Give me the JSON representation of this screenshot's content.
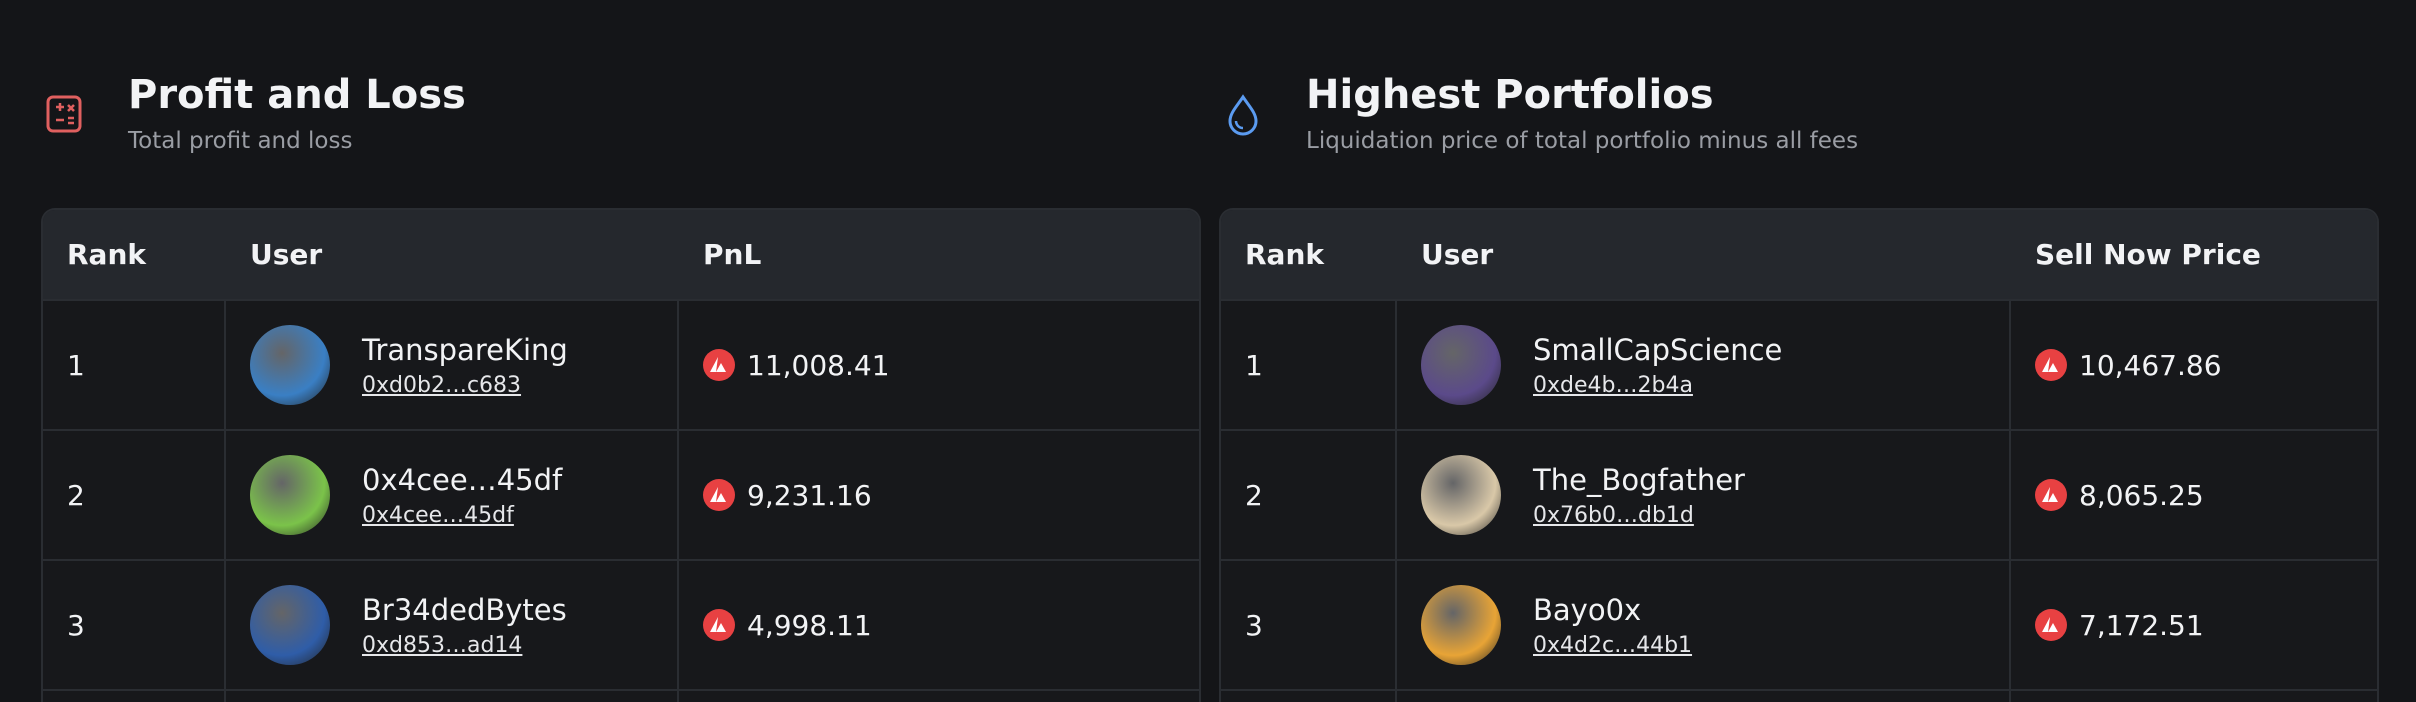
{
  "panels": [
    {
      "title": "Profit and Loss",
      "subtitle": "Total profit and loss",
      "table": {
        "headers": [
          "Rank",
          "User",
          "PnL"
        ],
        "rows": [
          {
            "rank": "1",
            "name": "TranspareKing",
            "address": "0xd0b2…c683",
            "value": "11,008.41"
          },
          {
            "rank": "2",
            "name": "0x4cee…45df",
            "address": "0x4cee…45df",
            "value": "9,231.16"
          },
          {
            "rank": "3",
            "name": "Br34dedBytes",
            "address": "0xd853…ad14",
            "value": "4,998.11"
          }
        ]
      }
    },
    {
      "title": "Highest Portfolios",
      "subtitle": "Liquidation price of total portfolio minus all fees",
      "table": {
        "headers": [
          "Rank",
          "User",
          "Sell Now Price"
        ],
        "rows": [
          {
            "rank": "1",
            "name": "SmallCapScience",
            "address": "0xde4b…2b4a",
            "value": "10,467.86"
          },
          {
            "rank": "2",
            "name": "The_Bogfather",
            "address": "0x76b0…db1d",
            "value": "8,065.25"
          },
          {
            "rank": "3",
            "name": "Bayo0x",
            "address": "0x4d2c…44b1",
            "value": "7,172.51"
          }
        ]
      }
    }
  ]
}
